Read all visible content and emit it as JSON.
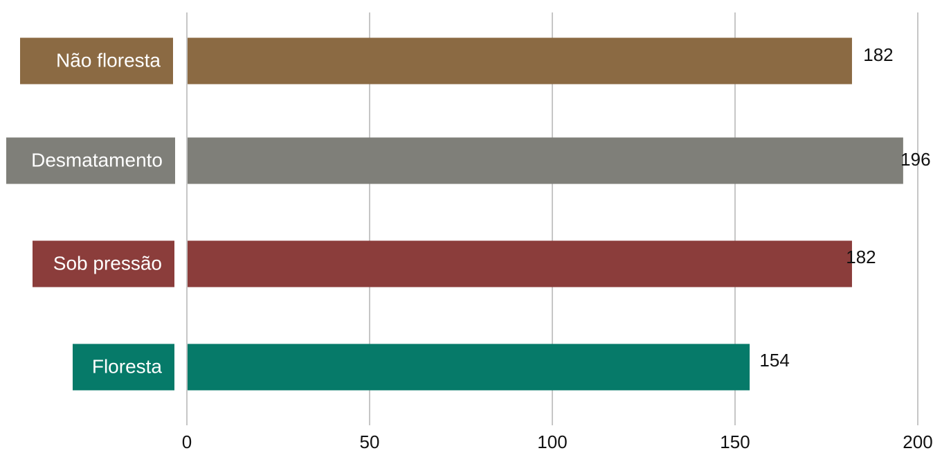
{
  "chart_data": {
    "type": "bar",
    "orientation": "horizontal",
    "categories": [
      "Não floresta",
      "Desmatamento",
      "Sob pressão",
      "Floresta"
    ],
    "values": [
      182,
      196,
      182,
      154
    ],
    "value_labels": [
      "182",
      "196",
      "182",
      "154"
    ],
    "colors": [
      "#8b6a43",
      "#7f7f79",
      "#8b3d3b",
      "#067a69"
    ],
    "xlim": [
      0,
      200
    ],
    "xticks": [
      0,
      50,
      100,
      150,
      200
    ],
    "xtick_labels": [
      "0",
      "50",
      "100",
      "150",
      "200"
    ],
    "grid": true,
    "grid_color": "#c6c6c6",
    "label_text_color": "#ffffff",
    "legend": "none"
  }
}
